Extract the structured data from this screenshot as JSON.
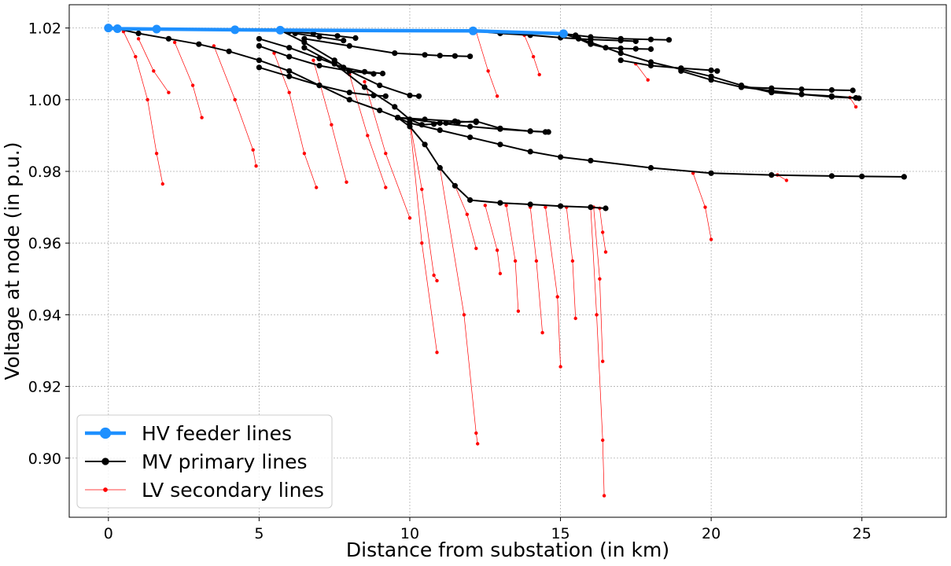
{
  "chart_data": {
    "type": "line",
    "xlabel": "Distance from substation (in km)",
    "ylabel": "Voltage at node (in p.u.)",
    "xlim": [
      -1.3,
      27.8
    ],
    "ylim": [
      0.8835,
      1.0265
    ],
    "x_ticks": [
      0,
      5,
      10,
      15,
      20,
      25
    ],
    "x_tick_labels": [
      "0",
      "5",
      "10",
      "15",
      "20",
      "25"
    ],
    "y_ticks": [
      0.9,
      0.92,
      0.94,
      0.96,
      0.98,
      1.0,
      1.02
    ],
    "y_tick_labels": [
      "0.90",
      "0.92",
      "0.94",
      "0.96",
      "0.98",
      "1.00",
      "1.02"
    ],
    "grid": true,
    "legend_position": "lower-left",
    "colors": {
      "hv": "#1e90ff",
      "mv": "#000000",
      "lv": "#ff0000"
    },
    "series": [
      {
        "name": "HV feeder lines",
        "style": "hv",
        "lines": [
          {
            "x": [
              0,
              0.3,
              1.6,
              4.2,
              5.7,
              12.1,
              15.1
            ],
            "y": [
              1.02,
              1.0198,
              1.0197,
              1.0195,
              1.0194,
              1.0192,
              1.0184
            ]
          }
        ]
      },
      {
        "name": "MV primary lines",
        "style": "mv",
        "lines": [
          {
            "x": [
              0.3,
              1.0,
              2.0,
              3.0,
              4.0,
              5.0,
              6.0,
              7.0,
              8.0,
              9.0,
              9.6,
              10.0,
              10.5,
              11.0,
              11.5,
              12.0,
              13.0,
              14.0,
              15.0,
              16.0,
              16.5
            ],
            "y": [
              1.0198,
              1.0185,
              1.017,
              1.0155,
              1.0135,
              1.011,
              1.008,
              1.004,
              1.0,
              0.997,
              0.995,
              0.9925,
              0.9875,
              0.981,
              0.976,
              0.972,
              0.9712,
              0.9708,
              0.9703,
              0.97,
              0.9697
            ]
          },
          {
            "x": [
              9.6,
              10.0,
              11.0,
              12.0,
              13.0,
              14.0,
              15.0,
              16.0,
              18.0,
              20.0,
              22.0,
              24.0,
              25.0,
              26.4
            ],
            "y": [
              0.995,
              0.9935,
              0.9915,
              0.9895,
              0.9875,
              0.9855,
              0.984,
              0.983,
              0.981,
              0.9795,
              0.979,
              0.9787,
              0.9786,
              0.9785
            ]
          },
          {
            "x": [
              9.6,
              11.0,
              12.0,
              13.0,
              14.0,
              14.6
            ],
            "y": [
              0.995,
              0.9935,
              0.9925,
              0.9918,
              0.9912,
              0.991
            ]
          },
          {
            "x": [
              9.6,
              10.5,
              11.5,
              12.2
            ],
            "y": [
              0.995,
              0.9945,
              0.994,
              0.9937
            ]
          },
          {
            "x": [
              5.7,
              6.5,
              7.5,
              8.0,
              9.0,
              10.0,
              10.3
            ],
            "y": [
              1.0194,
              1.016,
              1.011,
              1.008,
              1.004,
              1.0012,
              1.001
            ]
          },
          {
            "x": [
              5.7,
              6.2,
              7.0,
              7.8
            ],
            "y": [
              1.0194,
              1.0185,
              1.0175,
              1.0165
            ]
          },
          {
            "x": [
              6.0,
              6.8,
              7.6,
              8.2
            ],
            "y": [
              1.019,
              1.0185,
              1.0178,
              1.0172
            ]
          },
          {
            "x": [
              5.0,
              6.0,
              7.0,
              7.8,
              8.5,
              9.1
            ],
            "y": [
              1.017,
              1.0145,
              1.0115,
              1.009,
              1.0078,
              1.0073
            ]
          },
          {
            "x": [
              5.0,
              6.0,
              7.0,
              8.0,
              8.8
            ],
            "y": [
              1.015,
              1.012,
              1.0095,
              1.008,
              1.0072
            ]
          },
          {
            "x": [
              6.5,
              8.0,
              9.5,
              10.5,
              11.0,
              11.5,
              12.0
            ],
            "y": [
              1.017,
              1.015,
              1.013,
              1.0125,
              1.0123,
              1.0122,
              1.0121
            ]
          },
          {
            "x": [
              6.5,
              7.5,
              8.5,
              9.5,
              10.0,
              10.4,
              10.8,
              11.2,
              11.6,
              12.2,
              13.0,
              14.0,
              14.5
            ],
            "y": [
              1.0145,
              1.01,
              1.0035,
              0.998,
              0.9945,
              0.993,
              0.9932,
              0.9935,
              0.9937,
              0.994,
              0.992,
              0.9912,
              0.991
            ]
          },
          {
            "x": [
              5.0,
              6.0,
              7.0,
              8.0,
              8.8,
              9.2
            ],
            "y": [
              1.009,
              1.0065,
              1.004,
              1.002,
              1.0012,
              1.001
            ]
          },
          {
            "x": [
              12.1,
              13.0,
              14.0,
              15.0,
              16.0,
              17.0,
              17.5
            ],
            "y": [
              1.0192,
              1.0185,
              1.018,
              1.0173,
              1.0168,
              1.0165,
              1.0163
            ]
          },
          {
            "x": [
              15.1,
              15.5,
              16.0,
              17.0,
              18.0,
              18.6
            ],
            "y": [
              1.0184,
              1.018,
              1.0175,
              1.017,
              1.0168,
              1.0167
            ]
          },
          {
            "x": [
              15.1,
              15.6,
              16.0,
              16.5,
              17.0,
              17.5,
              18.0
            ],
            "y": [
              1.0184,
              1.017,
              1.0155,
              1.0145,
              1.0143,
              1.0142,
              1.0141
            ]
          },
          {
            "x": [
              15.1,
              16.0,
              17.0,
              18.0,
              19.0,
              20.0,
              21.0,
              22.0,
              23.0,
              24.0,
              24.8
            ],
            "y": [
              1.0184,
              1.016,
              1.013,
              1.0105,
              1.0085,
              1.0065,
              1.004,
              1.002,
              1.0015,
              1.001,
              1.0005
            ]
          },
          {
            "x": [
              17.0,
              18.0,
              19.0,
              20.0,
              20.2
            ],
            "y": [
              1.011,
              1.0095,
              1.0088,
              1.0082,
              1.008
            ]
          },
          {
            "x": [
              19.0,
              20.0,
              21.0,
              22.0,
              23.0,
              24.0,
              24.9
            ],
            "y": [
              1.008,
              1.0055,
              1.0035,
              1.0025,
              1.0015,
              1.0008,
              1.0004
            ]
          },
          {
            "x": [
              21.0,
              22.0,
              23.0,
              24.0,
              24.7
            ],
            "y": [
              1.0035,
              1.0032,
              1.0029,
              1.0027,
              1.0026
            ]
          }
        ]
      },
      {
        "name": "LV secondary lines",
        "style": "lv",
        "lines": [
          {
            "x": [
              0.5,
              0.9,
              1.3,
              1.6,
              1.8
            ],
            "y": [
              1.019,
              1.012,
              1.0,
              0.985,
              0.9765
            ]
          },
          {
            "x": [
              1.0,
              1.5,
              2.0
            ],
            "y": [
              1.017,
              1.008,
              1.002
            ]
          },
          {
            "x": [
              2.2,
              2.8,
              3.1
            ],
            "y": [
              1.016,
              1.004,
              0.995
            ]
          },
          {
            "x": [
              3.5,
              4.2,
              4.8,
              4.9
            ],
            "y": [
              1.015,
              1.0,
              0.986,
              0.9815
            ]
          },
          {
            "x": [
              5.5,
              6.0,
              6.5,
              6.9
            ],
            "y": [
              1.013,
              1.002,
              0.985,
              0.9755
            ]
          },
          {
            "x": [
              6.8,
              7.4,
              7.9
            ],
            "y": [
              1.011,
              0.993,
              0.977
            ]
          },
          {
            "x": [
              8.0,
              8.6,
              9.2
            ],
            "y": [
              1.007,
              0.99,
              0.9755
            ]
          },
          {
            "x": [
              8.5,
              9.2,
              10.0
            ],
            "y": [
              1.005,
              0.985,
              0.967
            ]
          },
          {
            "x": [
              10.0,
              10.4,
              10.8,
              10.9
            ],
            "y": [
              0.994,
              0.975,
              0.951,
              0.9495
            ]
          },
          {
            "x": [
              10.0,
              10.4,
              10.9
            ],
            "y": [
              0.994,
              0.96,
              0.9295
            ]
          },
          {
            "x": [
              11.0,
              11.8,
              12.2,
              12.25
            ],
            "y": [
              0.981,
              0.94,
              0.907,
              0.904
            ]
          },
          {
            "x": [
              11.5,
              11.9,
              12.2
            ],
            "y": [
              0.976,
              0.968,
              0.9585
            ]
          },
          {
            "x": [
              12.5,
              12.9,
              13.0
            ],
            "y": [
              0.9705,
              0.958,
              0.9515
            ]
          },
          {
            "x": [
              13.2,
              13.5,
              13.6
            ],
            "y": [
              0.9705,
              0.955,
              0.941
            ]
          },
          {
            "x": [
              14.0,
              14.2,
              14.4
            ],
            "y": [
              0.97,
              0.955,
              0.935
            ]
          },
          {
            "x": [
              14.5,
              14.9,
              15.0
            ],
            "y": [
              0.97,
              0.945,
              0.9255
            ]
          },
          {
            "x": [
              15.2,
              15.4,
              15.5
            ],
            "y": [
              0.97,
              0.955,
              0.939
            ]
          },
          {
            "x": [
              16.0,
              16.2,
              16.4,
              16.45
            ],
            "y": [
              0.97,
              0.94,
              0.905,
              0.8895
            ]
          },
          {
            "x": [
              16.1,
              16.3,
              16.4
            ],
            "y": [
              0.97,
              0.95,
              0.927
            ]
          },
          {
            "x": [
              16.3,
              16.4,
              16.5
            ],
            "y": [
              0.9697,
              0.963,
              0.9575
            ]
          },
          {
            "x": [
              12.2,
              12.6,
              12.9
            ],
            "y": [
              1.019,
              1.008,
              1.001
            ]
          },
          {
            "x": [
              13.8,
              14.1,
              14.3
            ],
            "y": [
              1.018,
              1.012,
              1.007
            ]
          },
          {
            "x": [
              19.4,
              19.8,
              20.0
            ],
            "y": [
              0.9795,
              0.97,
              0.961
            ]
          },
          {
            "x": [
              22.2,
              22.5
            ],
            "y": [
              0.979,
              0.9775
            ]
          },
          {
            "x": [
              24.6,
              24.8
            ],
            "y": [
              1.0006,
              0.998
            ]
          },
          {
            "x": [
              17.5,
              17.9
            ],
            "y": [
              1.01,
              1.0055
            ]
          }
        ]
      }
    ]
  }
}
